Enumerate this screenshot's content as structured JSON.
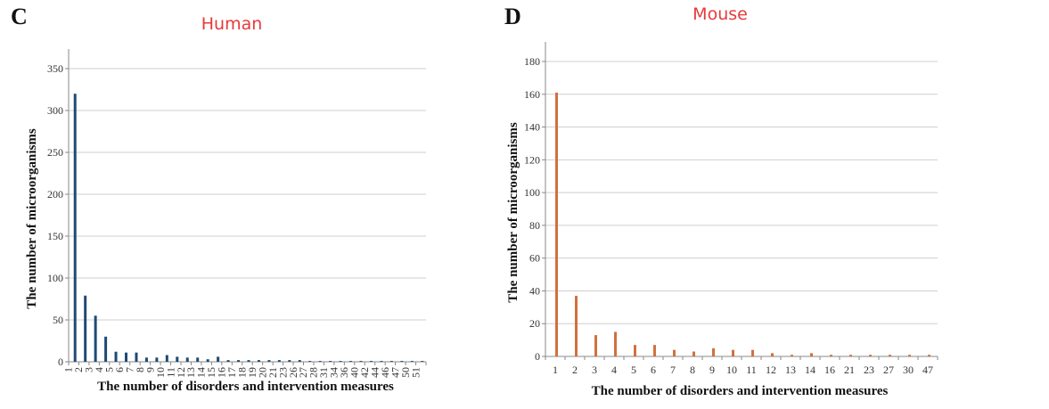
{
  "colors": {
    "title": "#e8393a",
    "human_bar": "#1f4a74",
    "mouse_bar": "#d2703e",
    "grid": "#cfcfcf",
    "axis": "#888888"
  },
  "chart_data": [
    {
      "panel": "C",
      "title": "Human",
      "type": "bar",
      "xlabel": "The number of disorders and intervention measures",
      "ylabel": "The number of microorganisms",
      "ylim": [
        0,
        350
      ],
      "yticks": [
        0,
        50,
        100,
        150,
        200,
        250,
        300,
        350
      ],
      "grid": true,
      "categories": [
        "1",
        "2",
        "3",
        "4",
        "5",
        "6",
        "7",
        "8",
        "9",
        "10",
        "11",
        "12",
        "13",
        "14",
        "15",
        "16",
        "17",
        "18",
        "19",
        "20",
        "21",
        "23",
        "26",
        "27",
        "28",
        "31",
        "34",
        "36",
        "40",
        "42",
        "44",
        "46",
        "47",
        "50",
        "51"
      ],
      "values": [
        320,
        79,
        55,
        30,
        12,
        11,
        11,
        5,
        5,
        8,
        6,
        5,
        5,
        3,
        6,
        2,
        2,
        2,
        2,
        2,
        2,
        2,
        2,
        1,
        1,
        1,
        1,
        1,
        1,
        1,
        1,
        1,
        1,
        1,
        1
      ]
    },
    {
      "panel": "D",
      "title": "Mouse",
      "type": "bar",
      "xlabel": "The number of disorders and intervention measures",
      "ylabel": "The number of microorganisms",
      "ylim": [
        0,
        180
      ],
      "yticks": [
        0,
        20,
        40,
        60,
        80,
        100,
        120,
        140,
        160,
        180
      ],
      "grid": true,
      "categories": [
        "1",
        "2",
        "3",
        "4",
        "5",
        "6",
        "7",
        "8",
        "9",
        "10",
        "11",
        "12",
        "13",
        "14",
        "16",
        "21",
        "23",
        "27",
        "30",
        "47"
      ],
      "values": [
        161,
        37,
        13,
        15,
        7,
        7,
        4,
        3,
        5,
        4,
        4,
        2,
        1,
        2,
        1,
        1,
        1,
        1,
        1,
        1
      ]
    }
  ]
}
